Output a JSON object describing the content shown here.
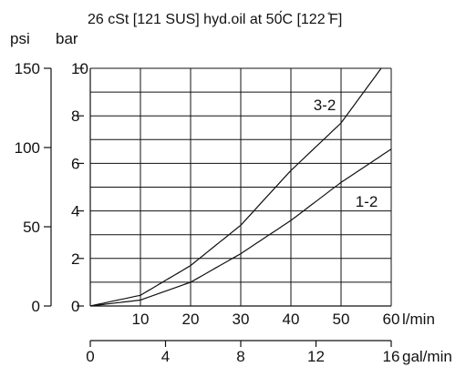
{
  "chart_data": {
    "type": "line",
    "title": "26 cSt [121 SUS] hyd.oil at 50́C [122 ̊F]",
    "axes": {
      "x_primary": {
        "unit": "l/min",
        "range": [
          0,
          60
        ],
        "ticks": [
          "10",
          "20",
          "30",
          "40",
          "50",
          "60"
        ]
      },
      "x_secondary": {
        "unit": "gal/min",
        "range": [
          0,
          16
        ],
        "ticks": [
          "0",
          "4",
          "8",
          "12",
          "16"
        ]
      },
      "y_primary": {
        "unit": "bar",
        "range": [
          0,
          10
        ],
        "ticks": [
          "0",
          "2",
          "4",
          "6",
          "8",
          "10"
        ]
      },
      "y_secondary": {
        "unit": "psi",
        "range": [
          0,
          150
        ],
        "ticks": [
          "0",
          "50",
          "100",
          "150"
        ]
      }
    },
    "grid": true,
    "series": [
      {
        "name": "3-2",
        "x": [
          0,
          10,
          20,
          30,
          40,
          50,
          58
        ],
        "y": [
          0,
          0.45,
          1.7,
          3.4,
          5.7,
          7.7,
          10
        ]
      },
      {
        "name": "1-2",
        "x": [
          0,
          10,
          20,
          30,
          40,
          50,
          60
        ],
        "y": [
          0,
          0.25,
          1.0,
          2.2,
          3.6,
          5.2,
          6.6
        ]
      }
    ]
  }
}
